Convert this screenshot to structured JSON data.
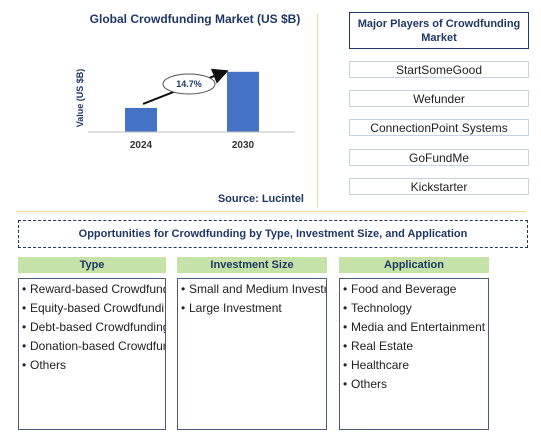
{
  "chart_data": {
    "type": "bar",
    "title": "Global Crowdfunding Market (US $B)",
    "ylabel": "Value (US $B)",
    "xlabel": "",
    "categories": [
      "2024",
      "2030"
    ],
    "values": [
      1.0,
      2.5
    ],
    "ylim": [
      0,
      2.7
    ],
    "grid": false,
    "annotation": "14.7%",
    "source": "Source: Lucintel",
    "bar_color": "#4472c4"
  },
  "players": {
    "title": "Major Players of Crowdfunding Market",
    "items": [
      "StartSomeGood",
      "Wefunder",
      "ConnectionPoint Systems",
      "GoFundMe",
      "Kickstarter"
    ]
  },
  "opportunities": {
    "title": "Opportunities for Crowdfunding by Type, Investment Size, and Application",
    "columns": [
      {
        "header": "Type",
        "items": [
          "Reward-based Crowdfunding",
          "Equity-based Crowdfunding",
          "Debt-based Crowdfunding",
          "Donation-based Crowdfunding",
          "Others"
        ]
      },
      {
        "header": "Investment Size",
        "items": [
          "Small and Medium Investment",
          "Large Investment"
        ]
      },
      {
        "header": "Application",
        "items": [
          "Food and Beverage",
          "Technology",
          "Media and Entertainment",
          "Real Estate",
          "Healthcare",
          "Others"
        ]
      }
    ]
  }
}
